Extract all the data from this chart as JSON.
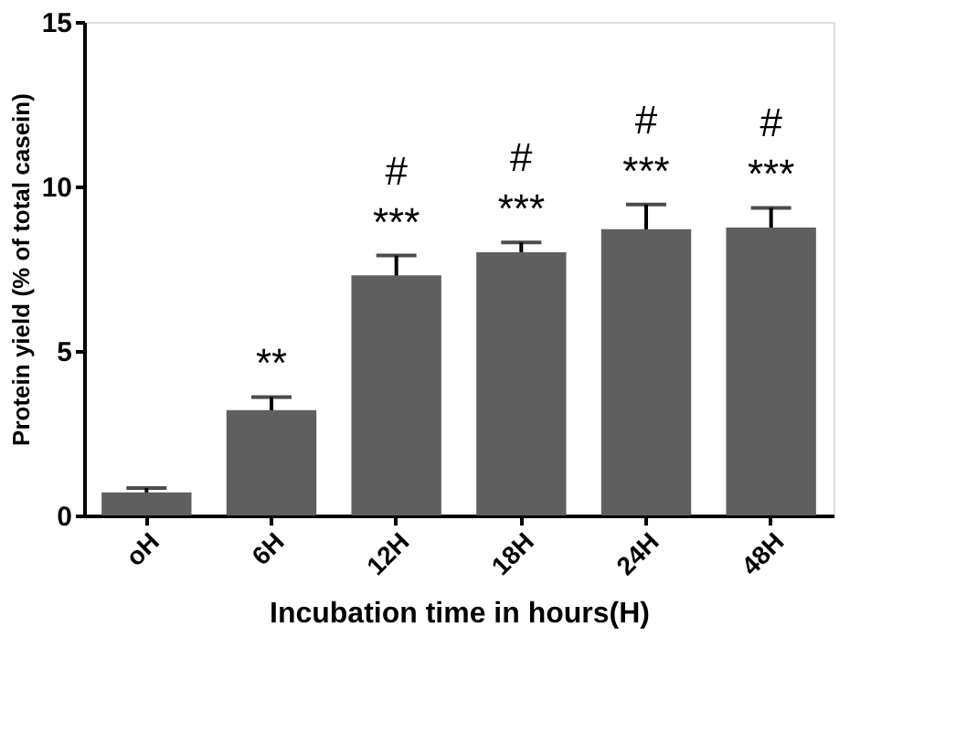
{
  "chart_data": {
    "type": "bar",
    "categories": [
      "oH",
      "6H",
      "12H",
      "18H",
      "24H",
      "48H"
    ],
    "values": [
      0.7,
      3.2,
      7.3,
      8.0,
      8.7,
      8.75
    ],
    "errors": [
      0.13,
      0.4,
      0.6,
      0.3,
      0.75,
      0.6
    ],
    "color": "#5f5f5f",
    "xlabel": "Incubation time in hours(H)",
    "ylabel": "Protein yield (%  of total casein)",
    "ylim": [
      0,
      15
    ],
    "yticks": [
      0,
      5,
      10,
      15
    ],
    "grid": false,
    "annotations": [
      {
        "text": "**",
        "x": "6H",
        "y": 3.6
      },
      {
        "text": "***",
        "x": "12H",
        "y": 7.9
      },
      {
        "text": "#",
        "x": "12H",
        "y": 7.9
      },
      {
        "text": "***",
        "x": "18H",
        "y": 8.3
      },
      {
        "text": "#",
        "x": "18H",
        "y": 8.3
      },
      {
        "text": "***",
        "x": "24H",
        "y": 9.45
      },
      {
        "text": "#",
        "x": "24H",
        "y": 9.45
      },
      {
        "text": "***",
        "x": "48H",
        "y": 9.35
      },
      {
        "text": "#",
        "x": "48H",
        "y": 9.35
      }
    ]
  }
}
